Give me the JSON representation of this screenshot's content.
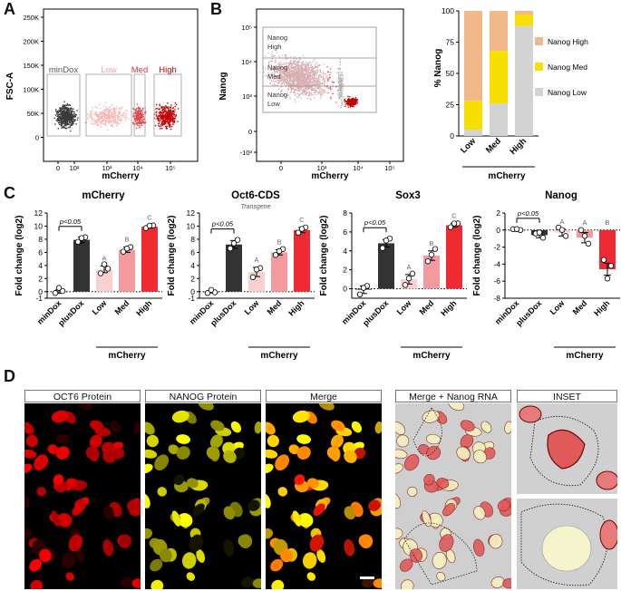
{
  "panels": {
    "A": "A",
    "B": "B",
    "C": "C",
    "D": "D"
  },
  "panelA": {
    "ylabel": "FSC-A",
    "xlabel": "mCherry",
    "yticks": [
      "250K",
      "200K",
      "150K",
      "100K",
      "50K",
      "0"
    ],
    "xticks": [
      "0",
      "10²",
      "10³",
      "10⁴",
      "10⁵"
    ],
    "gates": [
      "minDox",
      "Low",
      "Med",
      "High"
    ],
    "gate_colors": [
      "#555555",
      "#f2a0a0",
      "#e0303a",
      "#cc0000"
    ]
  },
  "panelB": {
    "ylabel": "Nanog",
    "xlabel": "mCherry",
    "yticks": [
      "10⁵",
      "10⁴",
      "10³",
      "0",
      "-10³"
    ],
    "xticks": [
      "0",
      "10³",
      "10⁴",
      "10⁵"
    ],
    "gates": [
      "Nanog\nHigh",
      "Nanog\nMed",
      "Nanog\nLow"
    ]
  },
  "stack_chart": {
    "ylabel": "% Nanog",
    "xlabel": "mCherry",
    "yticks": [
      "0",
      "25",
      "50",
      "75",
      "100"
    ],
    "legend": [
      {
        "label": "Nanog High",
        "color": "#f0b987"
      },
      {
        "label": "Nanog Med",
        "color": "#f7e000"
      },
      {
        "label": "Nanog Low",
        "color": "#d3d3d3"
      }
    ]
  },
  "chart_data": [
    {
      "type": "bar",
      "stacked": true,
      "categories": [
        "Low",
        "Med",
        "High"
      ],
      "series": [
        {
          "name": "Nanog Low",
          "values": [
            5,
            26,
            88
          ]
        },
        {
          "name": "Nanog Med",
          "values": [
            23,
            42,
            9
          ]
        },
        {
          "name": "Nanog High",
          "values": [
            72,
            32,
            3
          ]
        }
      ],
      "ylabel": "% Nanog",
      "xlabel": "mCherry",
      "ylim": [
        0,
        100
      ]
    },
    {
      "type": "bar",
      "title": "mCherry",
      "subtitle": "",
      "categories": [
        "minDox",
        "plusDox",
        "Low",
        "Med",
        "High"
      ],
      "values": [
        0,
        7.9,
        3.4,
        6.4,
        9.9
      ],
      "errors": [
        0.25,
        0.45,
        0.5,
        0.4,
        0.2
      ],
      "points": [
        [
          -0.2,
          0.1,
          0.3
        ],
        [
          7.6,
          8.3,
          7.9
        ],
        [
          2.8,
          3.5,
          3.9
        ],
        [
          6.1,
          6.8,
          6.3
        ],
        [
          9.7,
          10.1,
          9.8
        ]
      ],
      "letters": [
        "",
        "",
        "A",
        "B",
        "C"
      ],
      "significance": "p<0.05",
      "ylabel": "Fold change (log2)",
      "xlabel": "mCherry",
      "ylim": [
        -1,
        12
      ],
      "yticks": [
        "-1",
        "0",
        "2",
        "4",
        "6",
        "8",
        "10",
        "12"
      ]
    },
    {
      "type": "bar",
      "title": "Oct6-CDS",
      "subtitle": "Transgene",
      "categories": [
        "minDox",
        "plusDox",
        "Low",
        "Med",
        "High"
      ],
      "values": [
        -0.1,
        7.2,
        3.0,
        6.0,
        9.4
      ],
      "errors": [
        0.1,
        0.6,
        0.7,
        0.4,
        0.4
      ],
      "points": [
        [
          -0.2,
          -0.1,
          0.0
        ],
        [
          6.6,
          7.9,
          7.1
        ],
        [
          2.2,
          3.6,
          3.1
        ],
        [
          5.6,
          6.5,
          5.9
        ],
        [
          9.0,
          9.8,
          9.3
        ]
      ],
      "letters": [
        "",
        "",
        "A",
        "B",
        "C"
      ],
      "significance": "p<0.05",
      "ylabel": "Fold change (log2)",
      "xlabel": "mCherry",
      "ylim": [
        -1,
        12
      ],
      "yticks": [
        "-1",
        "0",
        "2",
        "4",
        "6",
        "8",
        "10",
        "12"
      ]
    },
    {
      "type": "bar",
      "title": "Sox3",
      "subtitle": "",
      "categories": [
        "minDox",
        "plusDox",
        "Low",
        "Med",
        "High"
      ],
      "values": [
        -0.1,
        4.8,
        1.0,
        3.5,
        6.7
      ],
      "errors": [
        0.4,
        0.4,
        0.5,
        0.5,
        0.2
      ],
      "points": [
        [
          -0.6,
          0.3,
          -0.1
        ],
        [
          4.3,
          5.3,
          4.9
        ],
        [
          0.4,
          1.6,
          0.9
        ],
        [
          2.9,
          4.2,
          3.4
        ],
        [
          6.5,
          6.9,
          6.7
        ]
      ],
      "letters": [
        "",
        "",
        "A",
        "B",
        "C"
      ],
      "significance": "p<0.05",
      "ylabel": "Fold change (log2)",
      "xlabel": "mCherry",
      "ylim": [
        -1,
        8
      ],
      "yticks": [
        "0",
        "2",
        "4",
        "6",
        "8"
      ]
    },
    {
      "type": "bar",
      "title": "Nanog",
      "subtitle": "",
      "categories": [
        "minDox",
        "plusDox",
        "Low",
        "Med",
        "High"
      ],
      "values": [
        0.0,
        -0.6,
        -0.3,
        -0.9,
        -4.6
      ],
      "errors": [
        0.1,
        0.3,
        0.4,
        0.6,
        0.7
      ],
      "points": [
        [
          0.1,
          0.0,
          -0.1
        ],
        [
          -0.4,
          -0.9,
          -0.5
        ],
        [
          0.3,
          -0.7,
          -0.2
        ],
        [
          0.0,
          -1.6,
          -0.9
        ],
        [
          -3.5,
          -4.2,
          -5.9
        ]
      ],
      "letters": [
        "",
        "",
        "A",
        "A",
        "B"
      ],
      "significance": "p<0.05",
      "ylabel": "Fold change (log2)",
      "xlabel": "mCherry",
      "ylim": [
        -8,
        2
      ],
      "yticks": [
        "-8",
        "-6",
        "-4",
        "-2",
        "0",
        "2"
      ]
    }
  ],
  "bar_colors": [
    "#333333",
    "#333333",
    "#f8d0d2",
    "#f49a9e",
    "#ee2a32"
  ],
  "panelD": {
    "headers": [
      "OCT6 Protein",
      "NANOG Protein",
      "Merge",
      "Merge + Nanog RNA",
      "INSET"
    ]
  }
}
